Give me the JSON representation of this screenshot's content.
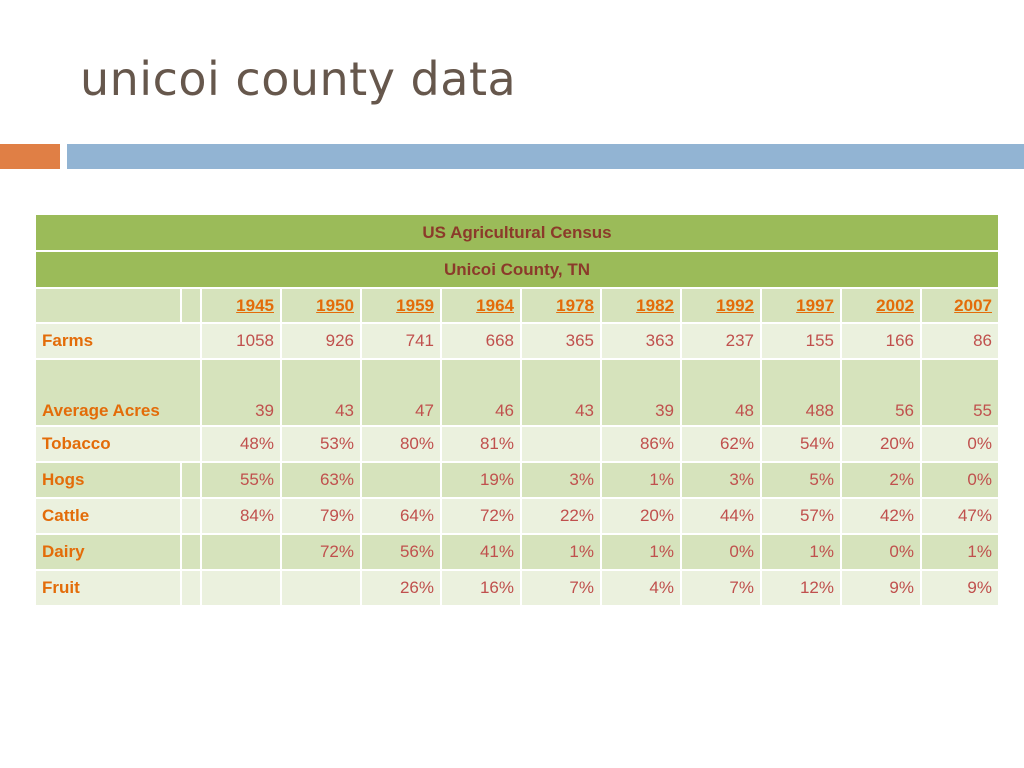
{
  "slide": {
    "title": "unicoi county data"
  },
  "table": {
    "title": "US Agricultural Census",
    "subtitle": "Unicoi County, TN",
    "years": [
      "1945",
      "1950",
      "1959",
      "1964",
      "1978",
      "1982",
      "1992",
      "1997",
      "2002",
      "2007"
    ],
    "rows": [
      {
        "label": "Farms",
        "values": [
          "1058",
          "926",
          "741",
          "668",
          "365",
          "363",
          "237",
          "155",
          "166",
          "86"
        ]
      },
      {
        "label": "Average Acres",
        "values": [
          "39",
          "43",
          "47",
          "46",
          "43",
          "39",
          "48",
          "488",
          "56",
          "55"
        ]
      },
      {
        "label": "Tobacco",
        "values": [
          "48%",
          "53%",
          "80%",
          "81%",
          "",
          "86%",
          "62%",
          "54%",
          "20%",
          "0%"
        ]
      },
      {
        "label": "Hogs",
        "values": [
          "55%",
          "63%",
          "",
          "19%",
          "3%",
          "1%",
          "3%",
          "5%",
          "2%",
          "0%"
        ]
      },
      {
        "label": "Cattle",
        "values": [
          "84%",
          "79%",
          "64%",
          "72%",
          "22%",
          "20%",
          "44%",
          "57%",
          "42%",
          "47%"
        ]
      },
      {
        "label": "Dairy",
        "values": [
          "",
          "72%",
          "56%",
          "41%",
          "1%",
          "1%",
          "0%",
          "1%",
          "0%",
          "1%"
        ]
      },
      {
        "label": "Fruit",
        "values": [
          "",
          "",
          "26%",
          "16%",
          "7%",
          "4%",
          "7%",
          "12%",
          "9%",
          "9%"
        ]
      }
    ]
  },
  "colors": {
    "header_green": "#9bbb59",
    "row_light": "#ebf1de",
    "row_mid": "#d6e3bc",
    "label_orange": "#e36c09",
    "value_red": "#c0504d",
    "accent_orange": "#e07f45",
    "accent_blue": "#92b4d3"
  }
}
